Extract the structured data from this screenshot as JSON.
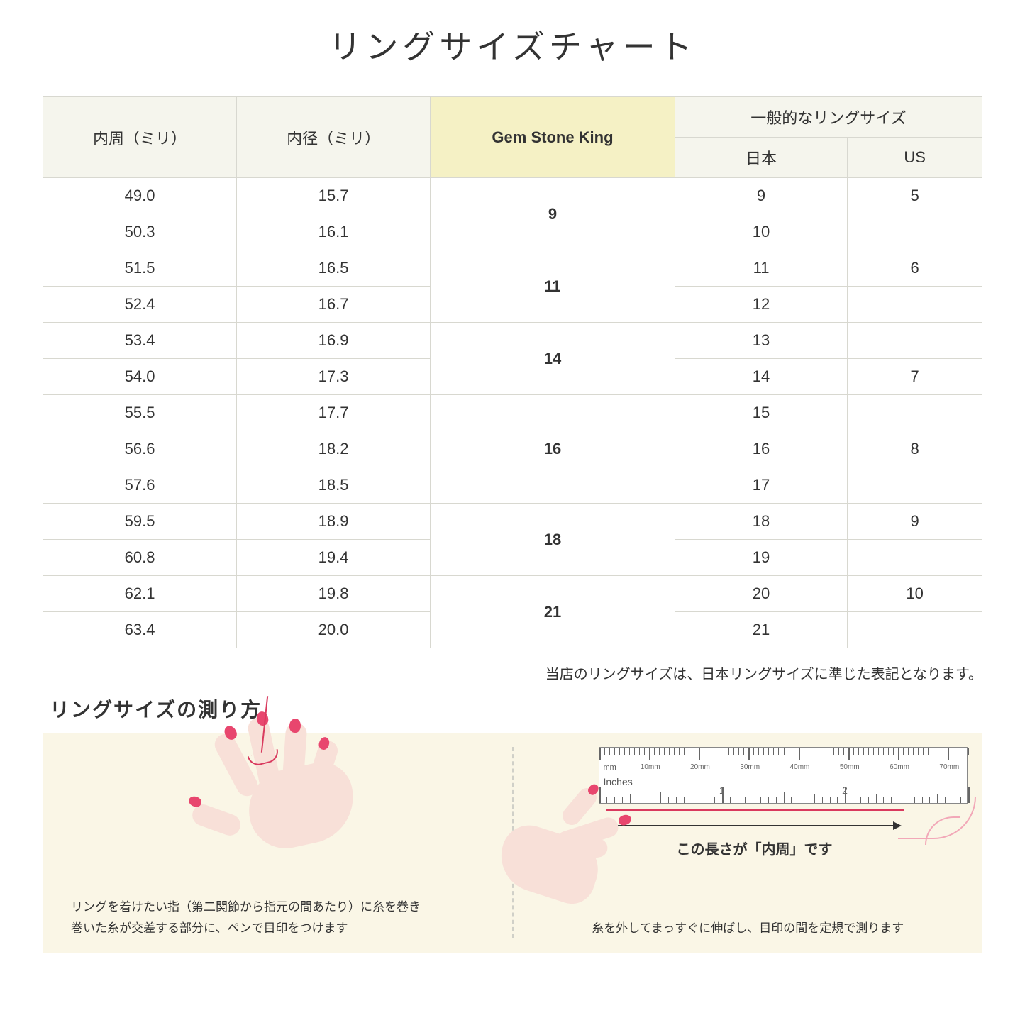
{
  "title": "リングサイズチャート",
  "headers": {
    "circumference": "内周（ミリ）",
    "diameter": "内径（ミリ）",
    "gsk": "Gem Stone King",
    "general": "一般的なリングサイズ",
    "japan": "日本",
    "us": "US"
  },
  "groups": [
    {
      "gsk": "9",
      "rows": [
        {
          "c": "49.0",
          "d": "15.7",
          "jp": "9",
          "us": "5"
        },
        {
          "c": "50.3",
          "d": "16.1",
          "jp": "10",
          "us": ""
        }
      ]
    },
    {
      "gsk": "11",
      "rows": [
        {
          "c": "51.5",
          "d": "16.5",
          "jp": "11",
          "us": "6"
        },
        {
          "c": "52.4",
          "d": "16.7",
          "jp": "12",
          "us": ""
        }
      ]
    },
    {
      "gsk": "14",
      "rows": [
        {
          "c": "53.4",
          "d": "16.9",
          "jp": "13",
          "us": ""
        },
        {
          "c": "54.0",
          "d": "17.3",
          "jp": "14",
          "us": "7"
        }
      ]
    },
    {
      "gsk": "16",
      "rows": [
        {
          "c": "55.5",
          "d": "17.7",
          "jp": "15",
          "us": ""
        },
        {
          "c": "56.6",
          "d": "18.2",
          "jp": "16",
          "us": "8"
        },
        {
          "c": "57.6",
          "d": "18.5",
          "jp": "17",
          "us": ""
        }
      ]
    },
    {
      "gsk": "18",
      "rows": [
        {
          "c": "59.5",
          "d": "18.9",
          "jp": "18",
          "us": "9"
        },
        {
          "c": "60.8",
          "d": "19.4",
          "jp": "19",
          "us": ""
        }
      ]
    },
    {
      "gsk": "21",
      "rows": [
        {
          "c": "62.1",
          "d": "19.8",
          "jp": "20",
          "us": "10"
        },
        {
          "c": "63.4",
          "d": "20.0",
          "jp": "21",
          "us": ""
        }
      ]
    }
  ],
  "note": "当店のリングサイズは、日本リングサイズに準じた表記となります。",
  "howto": {
    "title": "リングサイズの測り方",
    "left_caption_1": "リングを着けたい指（第二関節から指元の間あたり）に糸を巻き",
    "left_caption_2": "巻いた糸が交差する部分に、ペンで目印をつけます",
    "right_arrow_label": "この長さが「内周」です",
    "right_caption": "糸を外してまっすぐに伸ばし、目印の間を定規で測ります",
    "ruler": {
      "mm_label": "mm",
      "mm_marks": [
        "10mm",
        "20mm",
        "30mm",
        "40mm",
        "50mm",
        "60mm",
        "70mm"
      ],
      "inches_label": "Inches",
      "inch_marks": [
        "1",
        "2"
      ]
    }
  },
  "colors": {
    "header_bg": "#f5f5ed",
    "highlight_bg": "#f5f1c5",
    "border": "#d8d8d0",
    "howto_bg": "#faf6e6",
    "skin": "#f8e0d8",
    "nail": "#e8466e",
    "thread": "#d93a5e"
  }
}
